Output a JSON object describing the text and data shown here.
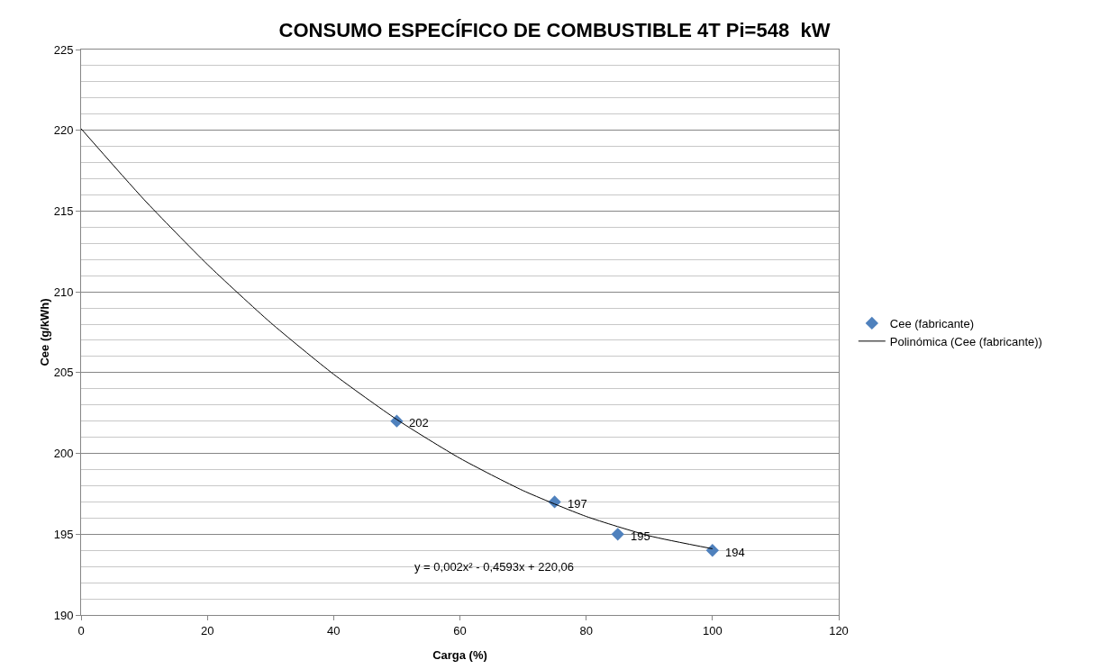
{
  "chart_data": {
    "type": "scatter",
    "title": "CONSUMO ESPECÍFICO DE COMBUSTIBLE 4T Pi=548  kW",
    "xlabel": "Carga (%)",
    "ylabel": "Cee (g/kWh)",
    "series": [
      {
        "name": "Cee (fabricante)",
        "color": "#4f81bd",
        "marker": "diamond",
        "x": [
          50,
          75,
          85,
          100
        ],
        "values": [
          202,
          197,
          195,
          194
        ],
        "value_labels": [
          "202",
          "197",
          "195",
          "194"
        ]
      },
      {
        "name": "Polinómica (Cee (fabricante))",
        "type": "line",
        "color": "#000000",
        "marker": "none",
        "line_style": "solid",
        "x": [
          0,
          10,
          20,
          30,
          40,
          50,
          60,
          70,
          80,
          90,
          100
        ],
        "values": [
          220.1,
          215.7,
          211.7,
          208.1,
          204.9,
          202.1,
          199.7,
          197.7,
          196.1,
          194.9,
          194.1
        ]
      }
    ],
    "annotations": [
      "y = 0,002x² - 0,4593x + 220,06"
    ],
    "xlim": [
      0,
      120
    ],
    "xticks": [
      0,
      20,
      40,
      60,
      80,
      100,
      120
    ],
    "ylim": [
      190,
      225
    ],
    "yticks": [
      190,
      {
        "value": 191,
        "label": null
      },
      {
        "value": 192,
        "label": null
      },
      {
        "value": 193,
        "label": null
      },
      {
        "value": 194,
        "label": null
      },
      195,
      {
        "value": 196,
        "label": null
      },
      {
        "value": 197,
        "label": null
      },
      {
        "value": 198,
        "label": null
      },
      {
        "value": 199,
        "label": null
      },
      200,
      {
        "value": 201,
        "label": null
      },
      {
        "value": 202,
        "label": null
      },
      {
        "value": 203,
        "label": null
      },
      {
        "value": 204,
        "label": null
      },
      205,
      {
        "value": 206,
        "label": null
      },
      {
        "value": 207,
        "label": null
      },
      {
        "value": 208,
        "label": null
      },
      {
        "value": 209,
        "label": null
      },
      210,
      {
        "value": 211,
        "label": null
      },
      {
        "value": 212,
        "label": null
      },
      {
        "value": 213,
        "label": null
      },
      {
        "value": 214,
        "label": null
      },
      215,
      {
        "value": 216,
        "label": null
      },
      {
        "value": 217,
        "label": null
      },
      {
        "value": 218,
        "label": null
      },
      {
        "value": 219,
        "label": null
      },
      220,
      {
        "value": 221,
        "label": null
      },
      {
        "value": 222,
        "label": null
      },
      {
        "value": 223,
        "label": null
      },
      {
        "value": 224,
        "label": null
      },
      225
    ],
    "grid": "y",
    "legend": "right"
  }
}
